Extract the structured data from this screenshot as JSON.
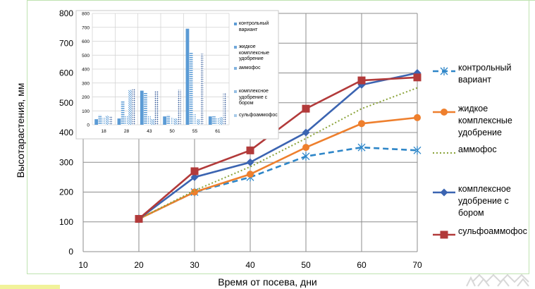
{
  "colors": {
    "kontrol": "#2e86c8",
    "zhidkoe": "#ee7f2d",
    "ammofos": "#8aa33a",
    "kompleks": "#3b64b1",
    "sulfo": "#b23a3a",
    "grid": "#8c8c8c",
    "inset_bar": "#5b9bd5",
    "frame": "#bfe3b0"
  },
  "chart_data": [
    {
      "type": "line",
      "ylabel": "Высотарастения, мм",
      "xlabel": "Время от посева, дни",
      "xlim": [
        10,
        70
      ],
      "ylim": [
        0,
        800
      ],
      "xticks": [
        "10",
        "20",
        "30",
        "40",
        "50",
        "60",
        "70"
      ],
      "yticks": [
        "0",
        "100",
        "200",
        "300",
        "400",
        "500",
        "600",
        "700",
        "800"
      ],
      "grid": true,
      "legend_position": "right",
      "series": [
        {
          "key": "kontrol",
          "name": "контрольный вариант",
          "style": "dashed",
          "marker": "star",
          "x": [
            20,
            30,
            40,
            50,
            60,
            70
          ],
          "y": [
            110,
            200,
            250,
            320,
            350,
            340
          ]
        },
        {
          "key": "zhidkoe",
          "name": "жидкое комплексные удобрение",
          "style": "solid",
          "marker": "circle",
          "x": [
            20,
            30,
            40,
            50,
            60,
            70
          ],
          "y": [
            110,
            200,
            260,
            350,
            430,
            450
          ]
        },
        {
          "key": "ammofos",
          "name": "аммофос",
          "style": "dotted",
          "marker": "none",
          "x": [
            20,
            30,
            40,
            50,
            60,
            70
          ],
          "y": [
            110,
            205,
            285,
            380,
            480,
            550
          ]
        },
        {
          "key": "kompleks",
          "name": "комплексное удобрение с бором",
          "style": "solid",
          "marker": "diamond",
          "x": [
            20,
            30,
            40,
            50,
            60,
            70
          ],
          "y": [
            110,
            250,
            300,
            400,
            560,
            600
          ]
        },
        {
          "key": "sulfo",
          "name": "сульфоаммофос",
          "style": "solid",
          "marker": "square",
          "x": [
            20,
            30,
            40,
            50,
            60,
            70
          ],
          "y": [
            110,
            270,
            340,
            480,
            575,
            585
          ]
        }
      ]
    },
    {
      "type": "bar",
      "categories": [
        "18",
        "28",
        "43",
        "50",
        "55",
        "61"
      ],
      "ylim": [
        0,
        800
      ],
      "yticks": [
        "0",
        "100",
        "200",
        "300",
        "400",
        "500",
        "600",
        "700",
        "800"
      ],
      "legend_position": "right",
      "series": [
        {
          "name": "контрольный вариант",
          "values": [
            40,
            45,
            245,
            60,
            690,
            60
          ]
        },
        {
          "name": "жидкое комплексные удобрение",
          "values": [
            70,
            170,
            230,
            70,
            520,
            60
          ]
        },
        {
          "name": "аммофос",
          "values": [
            55,
            60,
            60,
            55,
            75,
            50
          ]
        },
        {
          "name": "комплексное удобрение с бором",
          "values": [
            65,
            250,
            40,
            45,
            40,
            55
          ]
        },
        {
          "name": "сульфоаммофос",
          "values": [
            60,
            260,
            240,
            250,
            510,
            230
          ]
        }
      ]
    }
  ]
}
